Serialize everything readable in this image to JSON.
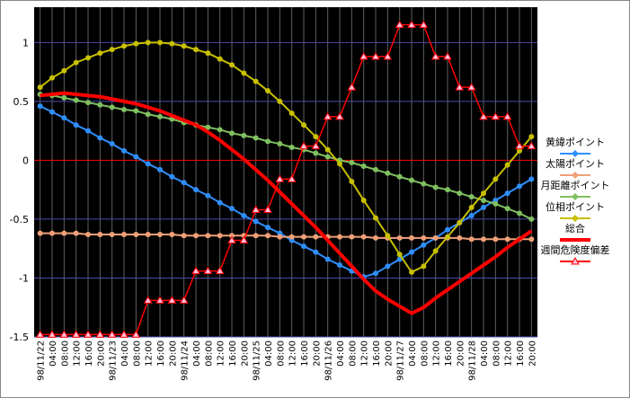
{
  "chart_data": {
    "type": "line",
    "categories": [
      "98/11/22",
      "04:00",
      "08:00",
      "12:00",
      "16:00",
      "20:00",
      "98/11/23",
      "04:00",
      "08:00",
      "12:00",
      "16:00",
      "20:00",
      "98/11/24",
      "04:00",
      "08:00",
      "12:00",
      "16:00",
      "20:00",
      "98/11/25",
      "04:00",
      "08:00",
      "12:00",
      "16:00",
      "20:00",
      "98/11/26",
      "04:00",
      "08:00",
      "12:00",
      "16:00",
      "20:00",
      "98/11/27",
      "04:00",
      "08:00",
      "12:00",
      "16:00",
      "20:00",
      "98/11/28",
      "04:00",
      "08:00",
      "12:00",
      "16:00",
      "20:00"
    ],
    "ylim": [
      -1.5,
      1.3
    ],
    "yticks": [
      -1.5,
      -1,
      -0.5,
      0,
      0.5,
      1
    ],
    "grid": true,
    "legend": "right",
    "series": [
      {
        "name": "黄緯ポイント",
        "color": "#2f8fff",
        "marker": "circle",
        "values": [
          0.46,
          0.41,
          0.36,
          0.3,
          0.25,
          0.19,
          0.14,
          0.08,
          0.03,
          -0.03,
          -0.08,
          -0.14,
          -0.19,
          -0.25,
          -0.3,
          -0.36,
          -0.41,
          -0.47,
          -0.52,
          -0.57,
          -0.62,
          -0.68,
          -0.73,
          -0.78,
          -0.84,
          -0.89,
          -0.94,
          -0.99,
          -0.96,
          -0.9,
          -0.84,
          -0.78,
          -0.72,
          -0.66,
          -0.59,
          -0.53,
          -0.47,
          -0.4,
          -0.34,
          -0.28,
          -0.22,
          -0.16
        ]
      },
      {
        "name": "太陽ポイント",
        "color": "#f0a078",
        "marker": "circle",
        "values": [
          -0.62,
          -0.62,
          -0.62,
          -0.62,
          -0.63,
          -0.63,
          -0.63,
          -0.63,
          -0.63,
          -0.63,
          -0.63,
          -0.63,
          -0.64,
          -0.64,
          -0.64,
          -0.64,
          -0.64,
          -0.64,
          -0.64,
          -0.64,
          -0.65,
          -0.65,
          -0.65,
          -0.65,
          -0.65,
          -0.65,
          -0.65,
          -0.65,
          -0.66,
          -0.66,
          -0.66,
          -0.66,
          -0.66,
          -0.66,
          -0.66,
          -0.66,
          -0.67,
          -0.67,
          -0.67,
          -0.67,
          -0.67,
          -0.67
        ]
      },
      {
        "name": "月距離ポイント",
        "color": "#80c060",
        "marker": "circle",
        "values": [
          0.56,
          0.55,
          0.53,
          0.51,
          0.49,
          0.47,
          0.45,
          0.43,
          0.42,
          0.39,
          0.37,
          0.35,
          0.32,
          0.3,
          0.28,
          0.26,
          0.23,
          0.21,
          0.19,
          0.16,
          0.14,
          0.11,
          0.09,
          0.06,
          0.03,
          0.0,
          -0.02,
          -0.05,
          -0.08,
          -0.11,
          -0.14,
          -0.17,
          -0.2,
          -0.23,
          -0.25,
          -0.28,
          -0.31,
          -0.34,
          -0.37,
          -0.41,
          -0.45,
          -0.5
        ]
      },
      {
        "name": "位相ポイント",
        "color": "#c8c000",
        "marker": "circle",
        "values": [
          0.62,
          0.7,
          0.76,
          0.83,
          0.87,
          0.91,
          0.94,
          0.97,
          0.99,
          1.0,
          1.0,
          0.99,
          0.97,
          0.94,
          0.91,
          0.86,
          0.81,
          0.74,
          0.67,
          0.59,
          0.5,
          0.4,
          0.3,
          0.2,
          0.09,
          -0.03,
          -0.18,
          -0.34,
          -0.49,
          -0.64,
          -0.8,
          -0.95,
          -0.9,
          -0.77,
          -0.65,
          -0.53,
          -0.4,
          -0.28,
          -0.16,
          -0.04,
          0.08,
          0.2
        ]
      },
      {
        "name": "総合",
        "color": "#ff0000",
        "marker": "none",
        "values": [
          0.55,
          0.56,
          0.57,
          0.56,
          0.55,
          0.54,
          0.52,
          0.5,
          0.48,
          0.45,
          0.42,
          0.38,
          0.34,
          0.3,
          0.24,
          0.17,
          0.09,
          0.01,
          -0.08,
          -0.17,
          -0.27,
          -0.37,
          -0.47,
          -0.57,
          -0.68,
          -0.79,
          -0.9,
          -1.01,
          -1.11,
          -1.18,
          -1.24,
          -1.3,
          -1.25,
          -1.17,
          -1.1,
          -1.03,
          -0.96,
          -0.89,
          -0.82,
          -0.74,
          -0.67,
          -0.6
        ]
      },
      {
        "name": "週間危険度偏差",
        "color": "#ff0000",
        "marker": "triangle",
        "values": [
          -1.48,
          -1.48,
          -1.48,
          -1.48,
          -1.48,
          -1.48,
          -1.48,
          -1.48,
          -1.48,
          -1.19,
          -1.19,
          -1.19,
          -1.19,
          -0.94,
          -0.94,
          -0.94,
          -0.68,
          -0.68,
          -0.42,
          -0.42,
          -0.16,
          -0.16,
          0.12,
          0.12,
          0.37,
          0.37,
          0.62,
          0.88,
          0.88,
          0.88,
          1.15,
          1.15,
          1.15,
          0.88,
          0.88,
          0.62,
          0.62,
          0.37,
          0.37,
          0.37,
          0.12,
          0.12
        ]
      }
    ]
  }
}
